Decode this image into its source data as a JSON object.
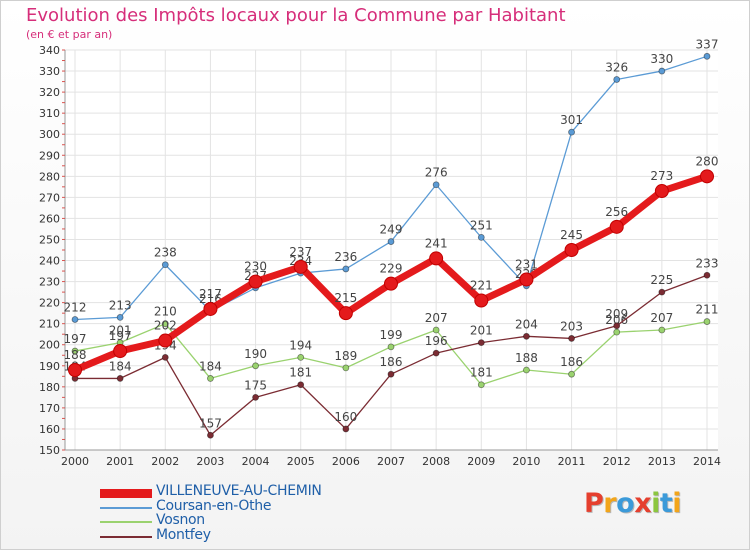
{
  "header": {
    "title": "Evolution des Impôts locaux pour la Commune par Habitant",
    "subtitle": "(en € et par an)"
  },
  "logo": {
    "text": "Proxiti",
    "letters": [
      {
        "ch": "P",
        "color": "#e53f2e"
      },
      {
        "ch": "r",
        "color": "#f2a51a"
      },
      {
        "ch": "o",
        "color": "#3b9ad9"
      },
      {
        "ch": "x",
        "color": "#e53f2e"
      },
      {
        "ch": "i",
        "color": "#8cc63f"
      },
      {
        "ch": "t",
        "color": "#3b9ad9"
      },
      {
        "ch": "i",
        "color": "#f2a51a"
      }
    ]
  },
  "chart_data": {
    "type": "line",
    "categories": [
      "2000",
      "2001",
      "2002",
      "2003",
      "2004",
      "2005",
      "2006",
      "2007",
      "2008",
      "2009",
      "2010",
      "2011",
      "2012",
      "2013",
      "2014"
    ],
    "ylim": [
      150,
      340
    ],
    "yticks": [
      150,
      160,
      170,
      180,
      190,
      200,
      210,
      220,
      230,
      240,
      250,
      260,
      270,
      280,
      290,
      300,
      310,
      320,
      330,
      340
    ],
    "grid": true,
    "legend_position": "bottom-left",
    "series": [
      {
        "name": "VILLENEUVE-AU-CHEMIN",
        "color": "#e41a1c",
        "highlight": true,
        "values": [
          188,
          197,
          202,
          217,
          230,
          237,
          215,
          229,
          241,
          221,
          231,
          245,
          256,
          273,
          280
        ]
      },
      {
        "name": "Coursan-en-Othe",
        "color": "#5b9bd5",
        "values": [
          212,
          213,
          238,
          216,
          227,
          234,
          236,
          249,
          276,
          251,
          228,
          301,
          326,
          330,
          337
        ]
      },
      {
        "name": "Vosnon",
        "color": "#9ad26f",
        "values": [
          197,
          201,
          210,
          184,
          190,
          194,
          189,
          199,
          207,
          181,
          188,
          186,
          206,
          207,
          211
        ]
      },
      {
        "name": "Montfey",
        "color": "#7b2c33",
        "values": [
          184,
          184,
          194,
          157,
          175,
          181,
          160,
          186,
          196,
          201,
          204,
          203,
          209,
          225,
          233
        ]
      }
    ]
  }
}
